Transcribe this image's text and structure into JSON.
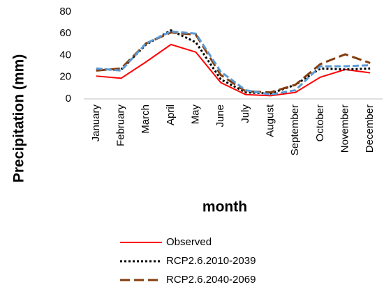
{
  "chart_data": {
    "type": "line",
    "y_label": "Precipitation (mm)",
    "x_label": "month",
    "categories": [
      "January",
      "February",
      "March",
      "April",
      "May",
      "June",
      "July",
      "August",
      "September",
      "October",
      "November",
      "December"
    ],
    "ylim": [
      0,
      80
    ],
    "yticks": [
      0,
      20,
      40,
      60,
      80
    ],
    "grid": false,
    "series": [
      {
        "name": "Observed",
        "color": "#ff0000",
        "dash": "solid",
        "values": [
          21,
          19,
          34,
          50,
          43,
          15,
          4,
          3,
          6,
          20,
          27,
          24
        ]
      },
      {
        "name": "RCP2.6.2010-2039",
        "color": "#000000",
        "dash": "dot",
        "values": [
          27,
          27,
          50,
          63,
          52,
          18,
          6,
          5,
          13,
          28,
          27,
          28
        ]
      },
      {
        "name": "RCP2.6.2040-2069",
        "color": "#843c0c",
        "dash": "longdash",
        "values": [
          26,
          28,
          51,
          61,
          59,
          22,
          7,
          6,
          13,
          32,
          41,
          33
        ]
      },
      {
        "color": "#5b9bd5",
        "dash": "dash",
        "values": [
          28,
          26,
          51,
          62,
          60,
          25,
          8,
          4,
          8,
          30,
          30,
          31
        ]
      }
    ]
  }
}
